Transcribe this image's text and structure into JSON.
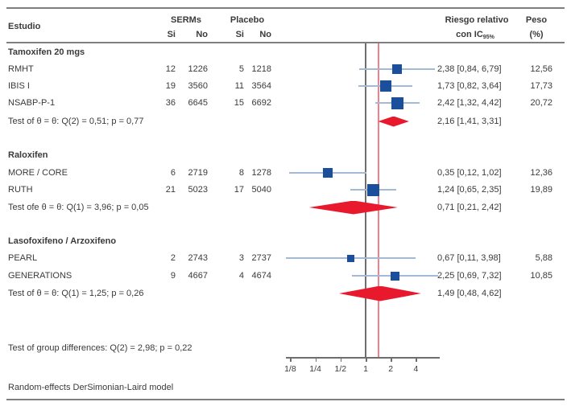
{
  "header": {
    "estudio": "Estudio",
    "serms": "SERMs",
    "placebo": "Placebo",
    "serms_si": "Si",
    "serms_no": "No",
    "placebo_si": "Si",
    "placebo_no": "No",
    "riesgo_line1": "Riesgo relativo",
    "riesgo_line2": "con IC",
    "ic_sub": "95%",
    "peso": "Peso",
    "peso_pct": "(%)"
  },
  "footer": {
    "group_diff": "Test of group differences: Q(2) = 2,98; p = 0,22",
    "model": "Random-effects DerSimonian-Laird model"
  },
  "colors": {
    "square_blue": "#1b4f9c",
    "diamond_red": "#e8192d",
    "overall_line_red": "#f2808a",
    "ci_line_blue": "#a4b9d3",
    "axis_gray": "#6e6e6e",
    "border_gray": "#7f7f7f",
    "text_gray": "#3a3a3a"
  },
  "chart_data": {
    "type": "forest",
    "x_scale": "log2",
    "x_label": "",
    "x_ticks": [
      {
        "value": 0.125,
        "label": "1/8"
      },
      {
        "value": 0.25,
        "label": "1/4"
      },
      {
        "value": 0.5,
        "label": "1/2"
      },
      {
        "value": 1,
        "label": "1"
      },
      {
        "value": 2,
        "label": "2"
      },
      {
        "value": 4,
        "label": "4"
      }
    ],
    "reference_line_value": 1,
    "overall_estimate_line_value": 1.43,
    "groups": [
      {
        "name": "Tamoxifen 20 mgs",
        "studies": [
          {
            "label": "RMHT",
            "serms_si": "12",
            "serms_no": "1226",
            "placebo_si": "5",
            "placebo_no": "1218",
            "rr": 2.38,
            "ci_low": 0.84,
            "ci_high": 6.79,
            "rr_label": "2,38 [0,84, 6,79]",
            "weight": 12.56,
            "weight_label": "12,56"
          },
          {
            "label": "IBIS I",
            "serms_si": "19",
            "serms_no": "3560",
            "placebo_si": "11",
            "placebo_no": "3564",
            "rr": 1.73,
            "ci_low": 0.82,
            "ci_high": 3.64,
            "rr_label": "1,73 [0,82, 3,64]",
            "weight": 17.73,
            "weight_label": "17,73"
          },
          {
            "label": "NSABP-P-1",
            "serms_si": "36",
            "serms_no": "6645",
            "placebo_si": "15",
            "placebo_no": "6692",
            "rr": 2.42,
            "ci_low": 1.32,
            "ci_high": 4.42,
            "rr_label": "2,42 [1,32, 4,42]",
            "weight": 20.72,
            "weight_label": "20,72"
          }
        ],
        "test_label": "Test of θ = θ: Q(2) = 0,51; p = 0,77",
        "diamond": {
          "value": 2.16,
          "ci_low": 1.41,
          "ci_high": 3.31,
          "label": "2,16 [1,41, 3,31]"
        }
      },
      {
        "name": "Raloxifen",
        "studies": [
          {
            "label": "MORE / CORE",
            "serms_si": "6",
            "serms_no": "2719",
            "placebo_si": "8",
            "placebo_no": "1278",
            "rr": 0.35,
            "ci_low": 0.12,
            "ci_high": 1.02,
            "rr_label": "0,35 [0,12, 1,02]",
            "weight": 12.36,
            "weight_label": "12,36"
          },
          {
            "label": "RUTH",
            "serms_si": "21",
            "serms_no": "5023",
            "placebo_si": "17",
            "placebo_no": "5040",
            "rr": 1.24,
            "ci_low": 0.65,
            "ci_high": 2.35,
            "rr_label": "1,24 [0,65, 2,35]",
            "weight": 19.89,
            "weight_label": "19,89"
          }
        ],
        "test_label": "Test ofe θ = θ: Q(1) = 3,96; p = 0,05",
        "diamond": {
          "value": 0.71,
          "ci_low": 0.21,
          "ci_high": 2.42,
          "label": "0,71 [0,21, 2,42]"
        }
      },
      {
        "name": "Lasofoxifeno / Arzoxifeno",
        "studies": [
          {
            "label": "PEARL",
            "serms_si": "2",
            "serms_no": "2743",
            "placebo_si": "3",
            "placebo_no": "2737",
            "rr": 0.67,
            "ci_low": 0.11,
            "ci_high": 3.98,
            "rr_label": "0,67 [0,11, 3,98]",
            "weight": 5.88,
            "weight_label": "5,88"
          },
          {
            "label": "GENERATIONS",
            "serms_si": "9",
            "serms_no": "4667",
            "placebo_si": "4",
            "placebo_no": "4674",
            "rr": 2.25,
            "ci_low": 0.69,
            "ci_high": 7.32,
            "rr_label": "2,25 [0,69, 7,32]",
            "weight": 10.85,
            "weight_label": "10,85"
          }
        ],
        "test_label": "Test of θ = θ: Q(1) = 1,25;  p = 0,26",
        "diamond": {
          "value": 1.49,
          "ci_low": 0.48,
          "ci_high": 4.62,
          "label": "1,49 [0,48, 4,62]"
        }
      }
    ]
  }
}
